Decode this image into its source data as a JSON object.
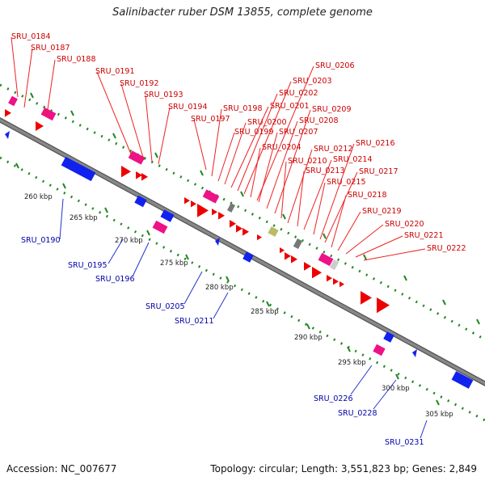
{
  "title": "Salinibacter ruber DSM 13855, complete genome",
  "accession_text": "Accession: NC_007677",
  "summary_text": "Topology: circular; Length: 3,551,823 bp; Genes: 2,849",
  "colors": {
    "backbone": "#888888",
    "cds": "#ee0000",
    "rna": "#ee1188",
    "reverse_strand": "#1122ee",
    "misc_gray": "#777777",
    "misc_olive": "#bbbb66",
    "dots": "#228822",
    "label_forward": "#cc0000",
    "label_reverse": "#0000aa"
  },
  "scale_labels": [
    "260 kbp",
    "265 kbp",
    "270 kbp",
    "275 kbp",
    "280 kbp",
    "285 kbp",
    "290 kbp",
    "295 kbp",
    "300 kbp",
    "305 kbp"
  ],
  "forward_labels": [
    "SRU_0184",
    "SRU_0187",
    "SRU_0188",
    "SRU_0191",
    "SRU_0192",
    "SRU_0193",
    "SRU_0194",
    "SRU_0197",
    "SRU_0198",
    "SRU_0199",
    "SRU_0200",
    "SRU_0201",
    "SRU_0202",
    "SRU_0203",
    "SRU_0204",
    "SRU_0206",
    "SRU_0207",
    "SRU_0208",
    "SRU_0209",
    "SRU_0210",
    "SRU_0212",
    "SRU_0213",
    "SRU_0214",
    "SRU_0215",
    "SRU_0216",
    "SRU_0217",
    "SRU_0218",
    "SRU_0219",
    "SRU_0220",
    "SRU_0221",
    "SRU_0222"
  ],
  "reverse_labels": [
    "SRU_0190",
    "SRU_0195",
    "SRU_0196",
    "SRU_0205",
    "SRU_0211",
    "SRU_0226",
    "SRU_0228",
    "SRU_0231"
  ]
}
